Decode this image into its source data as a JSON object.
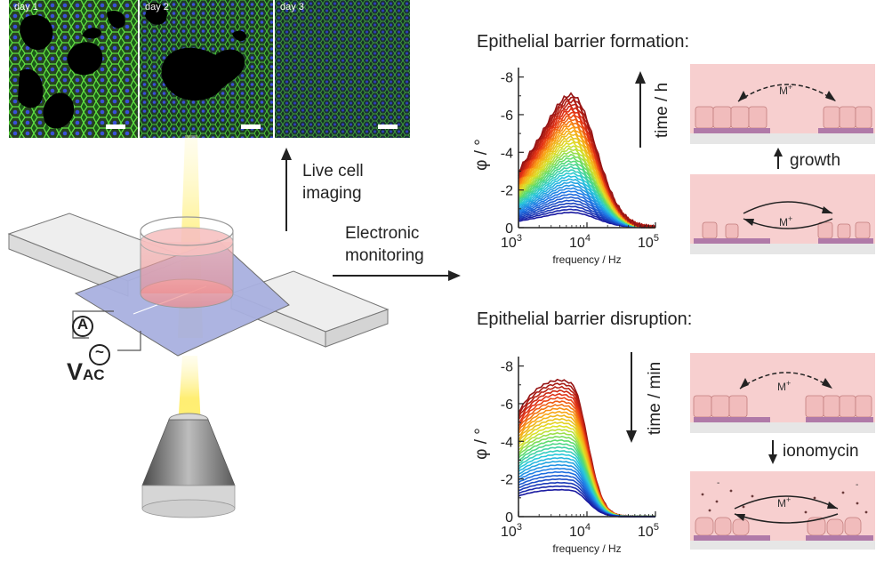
{
  "micrographs": [
    {
      "label": "day 1"
    },
    {
      "label": "day 2"
    },
    {
      "label": "day 3"
    }
  ],
  "setup": {
    "imaging_label_line1": "Live cell",
    "imaging_label_line2": "imaging",
    "monitoring_label_line1": "Electronic",
    "monitoring_label_line2": "monitoring",
    "ammeter_symbol": "A",
    "ac_source_symbol": "~",
    "voltage_main": "V",
    "voltage_sub": "AC"
  },
  "colors": {
    "cell_membrane": "#3fbf2a",
    "nuclei": "#3a4fd8",
    "tissue_background": "#f7cfcf",
    "electrode": "#b07aa8",
    "light_beam": "#fff17a"
  },
  "formation": {
    "title": "Epithelial barrier formation:",
    "time_label": "time / h",
    "step_label": "growth",
    "ion_label": "M+"
  },
  "disruption": {
    "title": "Epithelial barrier disruption:",
    "time_label": "time / min",
    "step_label": "ionomycin",
    "ion_label": "M+"
  },
  "chart_data": [
    {
      "type": "line",
      "title": "",
      "xlabel": "frequency / Hz",
      "ylabel": "φ / °",
      "xscale": "log",
      "xlim": [
        1000,
        100000
      ],
      "ylim": [
        0,
        -8.5
      ],
      "y_axis_inverted": true,
      "x_ticks": [
        "10^3",
        "10^4",
        "10^5"
      ],
      "y_ticks": [
        "0",
        "-2",
        "-4",
        "-6",
        "-8"
      ],
      "color_order": "blue (early) to red (late)",
      "series_count": 40,
      "series_peak_frequency_hz": 6000,
      "peak_phase_first": -0.8,
      "peak_phase_last": -7.0
    },
    {
      "type": "line",
      "title": "",
      "xlabel": "frequency / Hz",
      "ylabel": "φ / °",
      "xscale": "log",
      "xlim": [
        1000,
        100000
      ],
      "ylim": [
        0,
        -8.5
      ],
      "y_axis_inverted": true,
      "x_ticks": [
        "10^3",
        "10^4",
        "10^5"
      ],
      "y_ticks": [
        "0",
        "-2",
        "-4",
        "-6",
        "-8"
      ],
      "color_order": "blue (early) to red (late)",
      "series_count": 32,
      "series_peak_frequency_hz": 6000,
      "peak_phase_first": -6.6,
      "peak_phase_last": -1.3
    }
  ]
}
